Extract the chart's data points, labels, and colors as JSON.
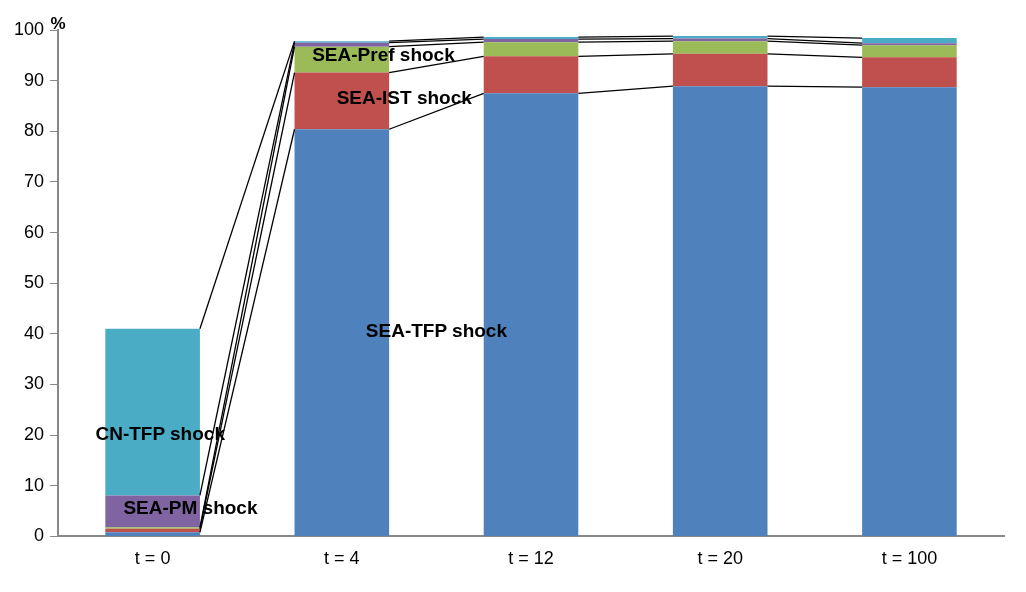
{
  "chart_data": {
    "type": "bar",
    "stacked": true,
    "ylabel": "%",
    "categories": [
      "t = 0",
      "t = 4",
      "t = 12",
      "t = 20",
      "t = 100"
    ],
    "series": [
      {
        "name": "SEA-TFP shock",
        "color": "#4f81bd",
        "values": [
          0.8,
          80.4,
          87.5,
          88.9,
          88.7
        ]
      },
      {
        "name": "SEA-IST shock",
        "color": "#c0504d",
        "values": [
          0.7,
          11.2,
          7.3,
          6.4,
          5.9
        ]
      },
      {
        "name": "SEA-Pref shock",
        "color": "#9bbb59",
        "values": [
          0.3,
          5.1,
          2.8,
          2.5,
          2.4
        ]
      },
      {
        "name": "SEA-PM shock",
        "color": "#8064a2",
        "values": [
          6.3,
          0.8,
          0.6,
          0.5,
          0.4
        ]
      },
      {
        "name": "CN-TFP shock",
        "color": "#4bacc6",
        "values": [
          32.9,
          0.3,
          0.4,
          0.5,
          1.0
        ]
      }
    ],
    "ylim": [
      0,
      100
    ],
    "yticks": [
      0,
      10,
      20,
      30,
      40,
      50,
      60,
      70,
      80,
      90,
      100
    ],
    "grid": false,
    "legend": false
  }
}
